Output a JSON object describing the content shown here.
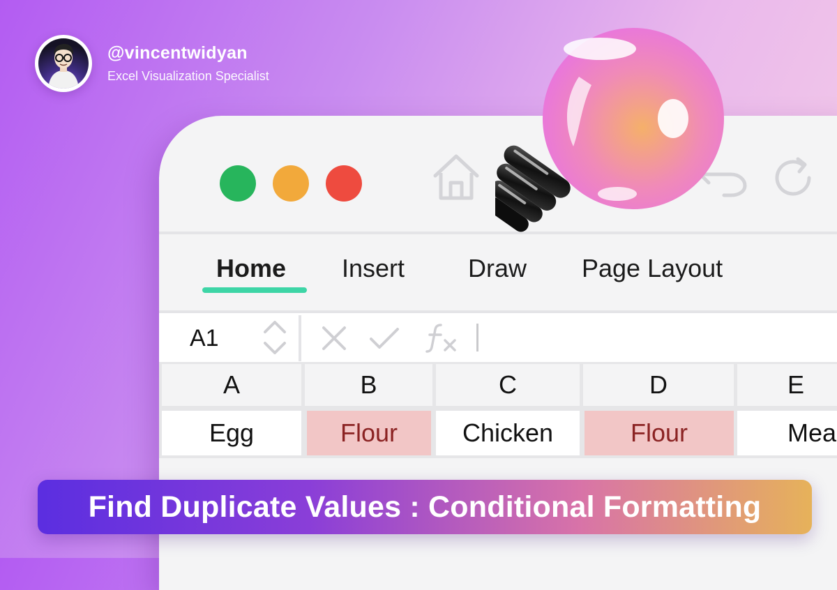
{
  "author": {
    "handle": "@vincentwidyan",
    "role": "Excel Visualization Specialist"
  },
  "toolbar": {
    "icons": [
      "home-icon",
      "undo-icon",
      "redo-icon"
    ]
  },
  "ribbon": {
    "tabs": [
      {
        "label": "Home",
        "active": true
      },
      {
        "label": "Insert",
        "active": false
      },
      {
        "label": "Draw",
        "active": false
      },
      {
        "label": "Page Layout",
        "active": false
      }
    ],
    "accent": "#3dd5a6"
  },
  "formula_bar": {
    "name_box": "A1"
  },
  "sheet": {
    "columns": [
      "A",
      "B",
      "C",
      "D",
      "E"
    ],
    "row1": [
      "Egg",
      "Flour",
      "Chicken",
      "Flour",
      "Mea"
    ],
    "duplicate_fill": "#f2c6c6",
    "duplicate_text": "#8b2323"
  },
  "window_controls": {
    "colors": [
      "#27b55c",
      "#f2a93b",
      "#ee4b3f"
    ]
  },
  "banner": {
    "text": "Find Duplicate Values : Conditional Formatting"
  }
}
